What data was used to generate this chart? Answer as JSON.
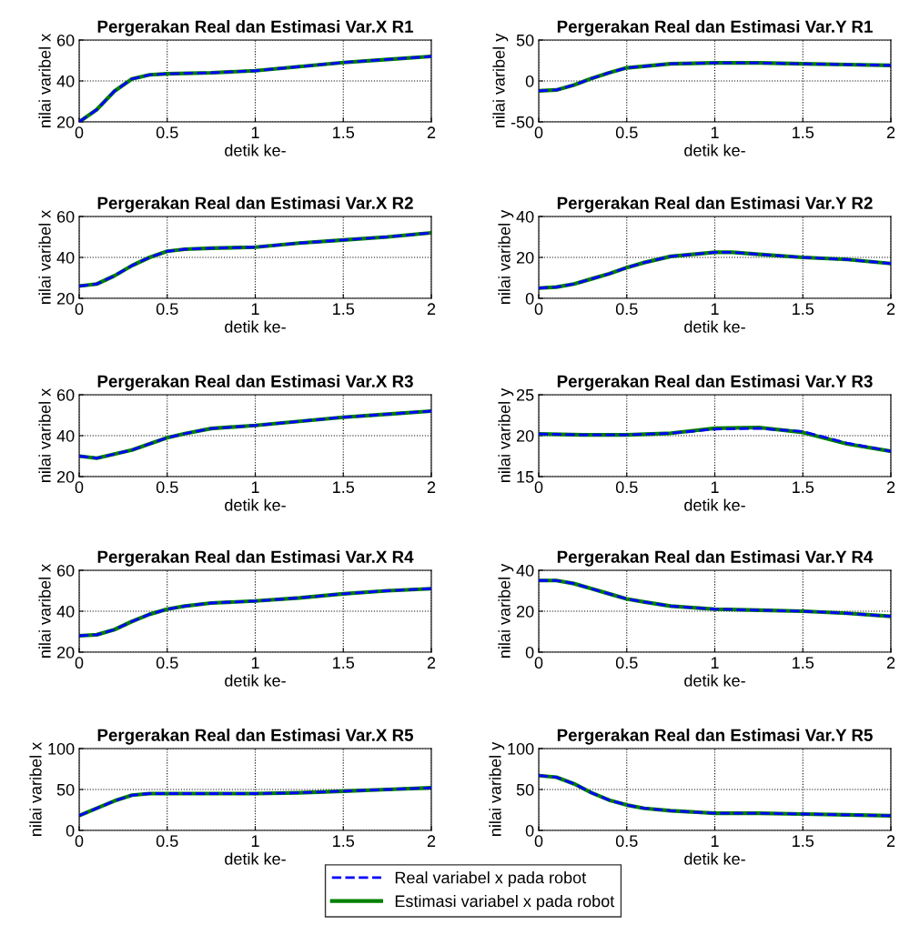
{
  "chart_data": [
    {
      "type": "line",
      "title": "Pergerakan Real dan Estimasi Var.X R1",
      "xlabel": "detik ke-",
      "ylabel": "nilai varibel x",
      "x": [
        0,
        0.1,
        0.2,
        0.3,
        0.4,
        0.5,
        0.75,
        1,
        1.25,
        1.5,
        1.75,
        2
      ],
      "xlim": [
        0,
        2
      ],
      "ylim": [
        20,
        60
      ],
      "xticks": [
        0,
        0.5,
        1,
        1.5,
        2
      ],
      "yticks": [
        20,
        40,
        60
      ],
      "grid": true,
      "series": [
        {
          "color": "#0000ff",
          "line_style": "dashed",
          "values": [
            20,
            26,
            35,
            41,
            43,
            43.5,
            44,
            45,
            47,
            49,
            50.5,
            52
          ]
        },
        {
          "color": "#008000",
          "line_style": "solid",
          "values": [
            20,
            26,
            35,
            41,
            43,
            43.5,
            44,
            45,
            47,
            49,
            50.5,
            52
          ]
        }
      ]
    },
    {
      "type": "line",
      "title": "Pergerakan Real dan Estimasi Var.Y R1",
      "xlabel": "detik ke-",
      "ylabel": "nilai varibel y",
      "x": [
        0,
        0.1,
        0.2,
        0.3,
        0.4,
        0.5,
        0.75,
        1,
        1.25,
        1.5,
        1.75,
        2
      ],
      "xlim": [
        0,
        2
      ],
      "ylim": [
        -50,
        50
      ],
      "xticks": [
        0,
        0.5,
        1,
        1.5,
        2
      ],
      "yticks": [
        -50,
        0,
        50
      ],
      "grid": true,
      "series": [
        {
          "color": "#0000ff",
          "line_style": "dashed",
          "values": [
            -12,
            -11,
            -5,
            3,
            10,
            16,
            21,
            22,
            22,
            21,
            20,
            19
          ]
        },
        {
          "color": "#008000",
          "line_style": "solid",
          "values": [
            -12,
            -11,
            -5,
            3,
            10,
            16,
            21,
            22,
            22,
            21,
            20,
            19
          ]
        }
      ]
    },
    {
      "type": "line",
      "title": "Pergerakan Real dan Estimasi Var.X R2",
      "xlabel": "detik ke-",
      "ylabel": "nilai varibel x",
      "x": [
        0,
        0.1,
        0.2,
        0.3,
        0.4,
        0.5,
        0.6,
        0.75,
        1,
        1.25,
        1.5,
        1.75,
        2
      ],
      "xlim": [
        0,
        2
      ],
      "ylim": [
        20,
        60
      ],
      "xticks": [
        0,
        0.5,
        1,
        1.5,
        2
      ],
      "yticks": [
        20,
        40,
        60
      ],
      "grid": true,
      "series": [
        {
          "color": "#0000ff",
          "line_style": "dashed",
          "values": [
            26,
            27,
            31,
            36,
            40,
            43,
            44,
            44.5,
            45,
            47,
            48.5,
            50,
            52
          ]
        },
        {
          "color": "#008000",
          "line_style": "solid",
          "values": [
            26,
            27,
            31,
            36,
            40,
            43,
            44,
            44.5,
            45,
            47,
            48.5,
            50,
            52
          ]
        }
      ]
    },
    {
      "type": "line",
      "title": "Pergerakan Real dan Estimasi Var.Y R2",
      "xlabel": "detik ke-",
      "ylabel": "nilai varibel y",
      "x": [
        0,
        0.1,
        0.2,
        0.3,
        0.4,
        0.5,
        0.6,
        0.75,
        1,
        1.1,
        1.25,
        1.5,
        1.75,
        2
      ],
      "xlim": [
        0,
        2
      ],
      "ylim": [
        0,
        40
      ],
      "xticks": [
        0,
        0.5,
        1,
        1.5,
        2
      ],
      "yticks": [
        0,
        20,
        40
      ],
      "grid": true,
      "series": [
        {
          "color": "#0000ff",
          "line_style": "dashed",
          "values": [
            5,
            5.5,
            7,
            9.5,
            12,
            15,
            17.5,
            20.5,
            22.5,
            22.5,
            21.5,
            20,
            19,
            17
          ]
        },
        {
          "color": "#008000",
          "line_style": "solid",
          "values": [
            5,
            5.5,
            7,
            9.5,
            12,
            15,
            17.5,
            20.5,
            22.5,
            22.5,
            21.5,
            20,
            19,
            17
          ]
        }
      ]
    },
    {
      "type": "line",
      "title": "Pergerakan Real dan Estimasi Var.X R3",
      "xlabel": "detik ke-",
      "ylabel": "nilai varibel x",
      "x": [
        0,
        0.1,
        0.2,
        0.3,
        0.4,
        0.5,
        0.6,
        0.75,
        1,
        1.25,
        1.5,
        1.75,
        2
      ],
      "xlim": [
        0,
        2
      ],
      "ylim": [
        20,
        60
      ],
      "xticks": [
        0,
        0.5,
        1,
        1.5,
        2
      ],
      "yticks": [
        20,
        40,
        60
      ],
      "grid": true,
      "series": [
        {
          "color": "#0000ff",
          "line_style": "dashed",
          "values": [
            30,
            29,
            31,
            33,
            36,
            39,
            41,
            43.5,
            45,
            47,
            49,
            50.5,
            52
          ]
        },
        {
          "color": "#008000",
          "line_style": "solid",
          "values": [
            30,
            29,
            31,
            33,
            36,
            39,
            41,
            43.5,
            45,
            47,
            49,
            50.5,
            52
          ]
        }
      ]
    },
    {
      "type": "line",
      "title": "Pergerakan Real dan Estimasi Var.Y R3",
      "xlabel": "detik ke-",
      "ylabel": "nilai varibel y",
      "x": [
        0,
        0.25,
        0.5,
        0.75,
        1,
        1.25,
        1.5,
        1.75,
        2
      ],
      "xlim": [
        0,
        2
      ],
      "ylim": [
        15,
        25
      ],
      "xticks": [
        0,
        0.5,
        1,
        1.5,
        2
      ],
      "yticks": [
        15,
        20,
        25
      ],
      "grid": true,
      "series": [
        {
          "color": "#0000ff",
          "line_style": "dashed",
          "values": [
            20.2,
            20.1,
            20.1,
            20.3,
            20.8,
            20.9,
            20.5,
            19.1,
            18.1
          ]
        },
        {
          "color": "#008000",
          "line_style": "solid",
          "values": [
            20.2,
            20.1,
            20.1,
            20.3,
            20.9,
            21.0,
            20.4,
            19.0,
            18.1
          ]
        }
      ]
    },
    {
      "type": "line",
      "title": "Pergerakan Real dan Estimasi Var.X R4",
      "xlabel": "detik ke-",
      "ylabel": "nilai varibel x",
      "x": [
        0,
        0.1,
        0.2,
        0.3,
        0.4,
        0.5,
        0.6,
        0.75,
        1,
        1.25,
        1.5,
        1.75,
        2
      ],
      "xlim": [
        0,
        2
      ],
      "ylim": [
        20,
        60
      ],
      "xticks": [
        0,
        0.5,
        1,
        1.5,
        2
      ],
      "yticks": [
        20,
        40,
        60
      ],
      "grid": true,
      "series": [
        {
          "color": "#0000ff",
          "line_style": "dashed",
          "values": [
            28,
            28.5,
            31,
            35,
            38.5,
            41,
            42.5,
            44,
            45,
            46.5,
            48.5,
            50,
            51
          ]
        },
        {
          "color": "#008000",
          "line_style": "solid",
          "values": [
            28,
            28.5,
            31,
            35,
            38.5,
            41,
            42.5,
            44,
            45,
            46.5,
            48.5,
            50,
            51
          ]
        }
      ]
    },
    {
      "type": "line",
      "title": "Pergerakan Real dan Estimasi Var.Y R4",
      "xlabel": "detik ke-",
      "ylabel": "nilai varibel y",
      "x": [
        0,
        0.1,
        0.2,
        0.3,
        0.4,
        0.5,
        0.6,
        0.75,
        1,
        1.25,
        1.5,
        1.75,
        2
      ],
      "xlim": [
        0,
        2
      ],
      "ylim": [
        0,
        40
      ],
      "xticks": [
        0,
        0.5,
        1,
        1.5,
        2
      ],
      "yticks": [
        0,
        20,
        40
      ],
      "grid": true,
      "series": [
        {
          "color": "#0000ff",
          "line_style": "dashed",
          "values": [
            35,
            35,
            33.5,
            31,
            28.5,
            26,
            24.5,
            22.5,
            21,
            20.5,
            20,
            19,
            17.5
          ]
        },
        {
          "color": "#008000",
          "line_style": "solid",
          "values": [
            35,
            35,
            33.5,
            31,
            28.5,
            26,
            24.5,
            22.5,
            21,
            20.5,
            20,
            19,
            17.5
          ]
        }
      ]
    },
    {
      "type": "line",
      "title": "Pergerakan Real dan Estimasi Var.X R5",
      "xlabel": "detik ke-",
      "ylabel": "nilai varibel x",
      "x": [
        0,
        0.1,
        0.2,
        0.3,
        0.4,
        0.5,
        0.75,
        1,
        1.25,
        1.5,
        1.75,
        2
      ],
      "xlim": [
        0,
        2
      ],
      "ylim": [
        0,
        100
      ],
      "xticks": [
        0,
        0.5,
        1,
        1.5,
        2
      ],
      "yticks": [
        0,
        50,
        100
      ],
      "grid": true,
      "series": [
        {
          "color": "#0000ff",
          "line_style": "dashed",
          "values": [
            18,
            27,
            36,
            43,
            45,
            45,
            45,
            45,
            46,
            48,
            50,
            52
          ]
        },
        {
          "color": "#008000",
          "line_style": "solid",
          "values": [
            18,
            27,
            36,
            43,
            45,
            45,
            45,
            45,
            46,
            48,
            50,
            52
          ]
        }
      ]
    },
    {
      "type": "line",
      "title": "Pergerakan Real dan Estimasi Var.Y R5",
      "xlabel": "detik ke-",
      "ylabel": "nilai varibel y",
      "x": [
        0,
        0.1,
        0.2,
        0.3,
        0.4,
        0.5,
        0.6,
        0.75,
        1,
        1.25,
        1.5,
        1.75,
        2
      ],
      "xlim": [
        0,
        2
      ],
      "ylim": [
        0,
        100
      ],
      "xticks": [
        0,
        0.5,
        1,
        1.5,
        2
      ],
      "yticks": [
        0,
        50,
        100
      ],
      "grid": true,
      "legend": "bottom",
      "series": [
        {
          "name": "Real variabel x pada robot",
          "color": "#0000ff",
          "line_style": "dashed",
          "values": [
            67,
            65,
            57,
            46,
            37,
            31,
            27,
            24,
            21,
            21,
            20,
            19,
            18
          ]
        },
        {
          "name": "Estimasi variabel x pada robot",
          "color": "#008000",
          "line_style": "solid",
          "values": [
            67,
            65,
            57,
            46,
            37,
            31,
            27,
            24,
            21,
            21,
            20,
            19,
            18
          ]
        }
      ]
    }
  ]
}
